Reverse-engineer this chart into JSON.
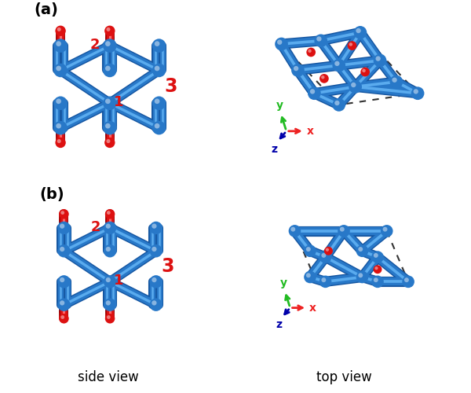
{
  "background_color": "#ffffff",
  "blue_atom_color": "#2878C8",
  "red_atom_color": "#DD1111",
  "bond_color": "#2878C8",
  "bond_color_dark": "#1555A0",
  "dashed_color": "#333333",
  "label_a": "(a)",
  "label_b": "(b)",
  "label_side": "side view",
  "label_top": "top view",
  "axis_x_color": "#EE2222",
  "axis_y_color": "#22BB22",
  "axis_z_color": "#0000AA"
}
